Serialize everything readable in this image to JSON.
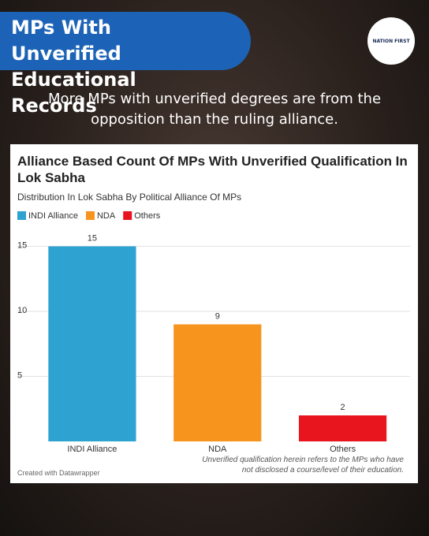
{
  "header": {
    "title": "MPs With Unverified Educational Records",
    "logo": "NATION FIRST",
    "subtitle": "More MPs with unverified degrees are from the opposition than the ruling alliance."
  },
  "chart_data": {
    "type": "bar",
    "title": "Alliance Based Count Of MPs With Unverified Qualification In Lok Sabha",
    "subtitle": "Distribution In Lok Sabha By Political Alliance Of MPs",
    "categories": [
      "INDI Alliance",
      "NDA",
      "Others"
    ],
    "values": [
      15,
      9,
      2
    ],
    "colors": [
      "#2ea3d1",
      "#f7941d",
      "#e8141e"
    ],
    "ylim": [
      0,
      16
    ],
    "yticks": [
      5,
      10,
      15
    ],
    "grid": true,
    "note": "Unverified qualification herein refers to the MPs who have not disclosed a course/level of their education.",
    "credit": "Created with Datawrapper"
  }
}
